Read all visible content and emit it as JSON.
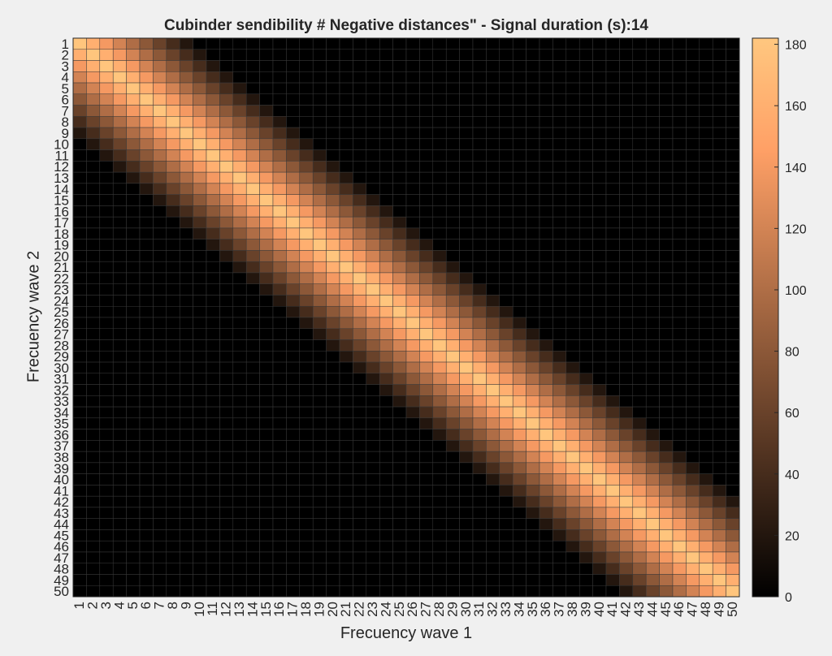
{
  "chart_data": {
    "type": "heatmap",
    "title": "Cubinder sendibility # Negative distances\" - Signal duration (s):14",
    "xlabel": "Frecuency wave 1",
    "ylabel": "Frecuency wave 2",
    "x_ticks": [
      "1",
      "2",
      "3",
      "4",
      "5",
      "6",
      "7",
      "8",
      "9",
      "10",
      "11",
      "12",
      "13",
      "14",
      "15",
      "16",
      "17",
      "18",
      "19",
      "20",
      "21",
      "22",
      "23",
      "24",
      "25",
      "26",
      "27",
      "28",
      "29",
      "30",
      "31",
      "32",
      "33",
      "34",
      "35",
      "36",
      "37",
      "38",
      "39",
      "40",
      "41",
      "42",
      "43",
      "44",
      "45",
      "46",
      "47",
      "48",
      "49",
      "50"
    ],
    "y_ticks": [
      "1",
      "2",
      "3",
      "4",
      "5",
      "6",
      "7",
      "8",
      "9",
      "10",
      "11",
      "12",
      "13",
      "14",
      "15",
      "16",
      "17",
      "18",
      "19",
      "20",
      "21",
      "22",
      "23",
      "24",
      "25",
      "26",
      "27",
      "28",
      "29",
      "30",
      "31",
      "32",
      "33",
      "34",
      "35",
      "36",
      "37",
      "38",
      "39",
      "40",
      "41",
      "42",
      "43",
      "44",
      "45",
      "46",
      "47",
      "48",
      "49",
      "50"
    ],
    "colormap": "copper",
    "clim": [
      0,
      182
    ],
    "colorbar_ticks": [
      "0",
      "20",
      "40",
      "60",
      "80",
      "100",
      "120",
      "140",
      "160",
      "180"
    ],
    "diagonal_peak": 180,
    "band_half_width": 9,
    "grid": true
  }
}
